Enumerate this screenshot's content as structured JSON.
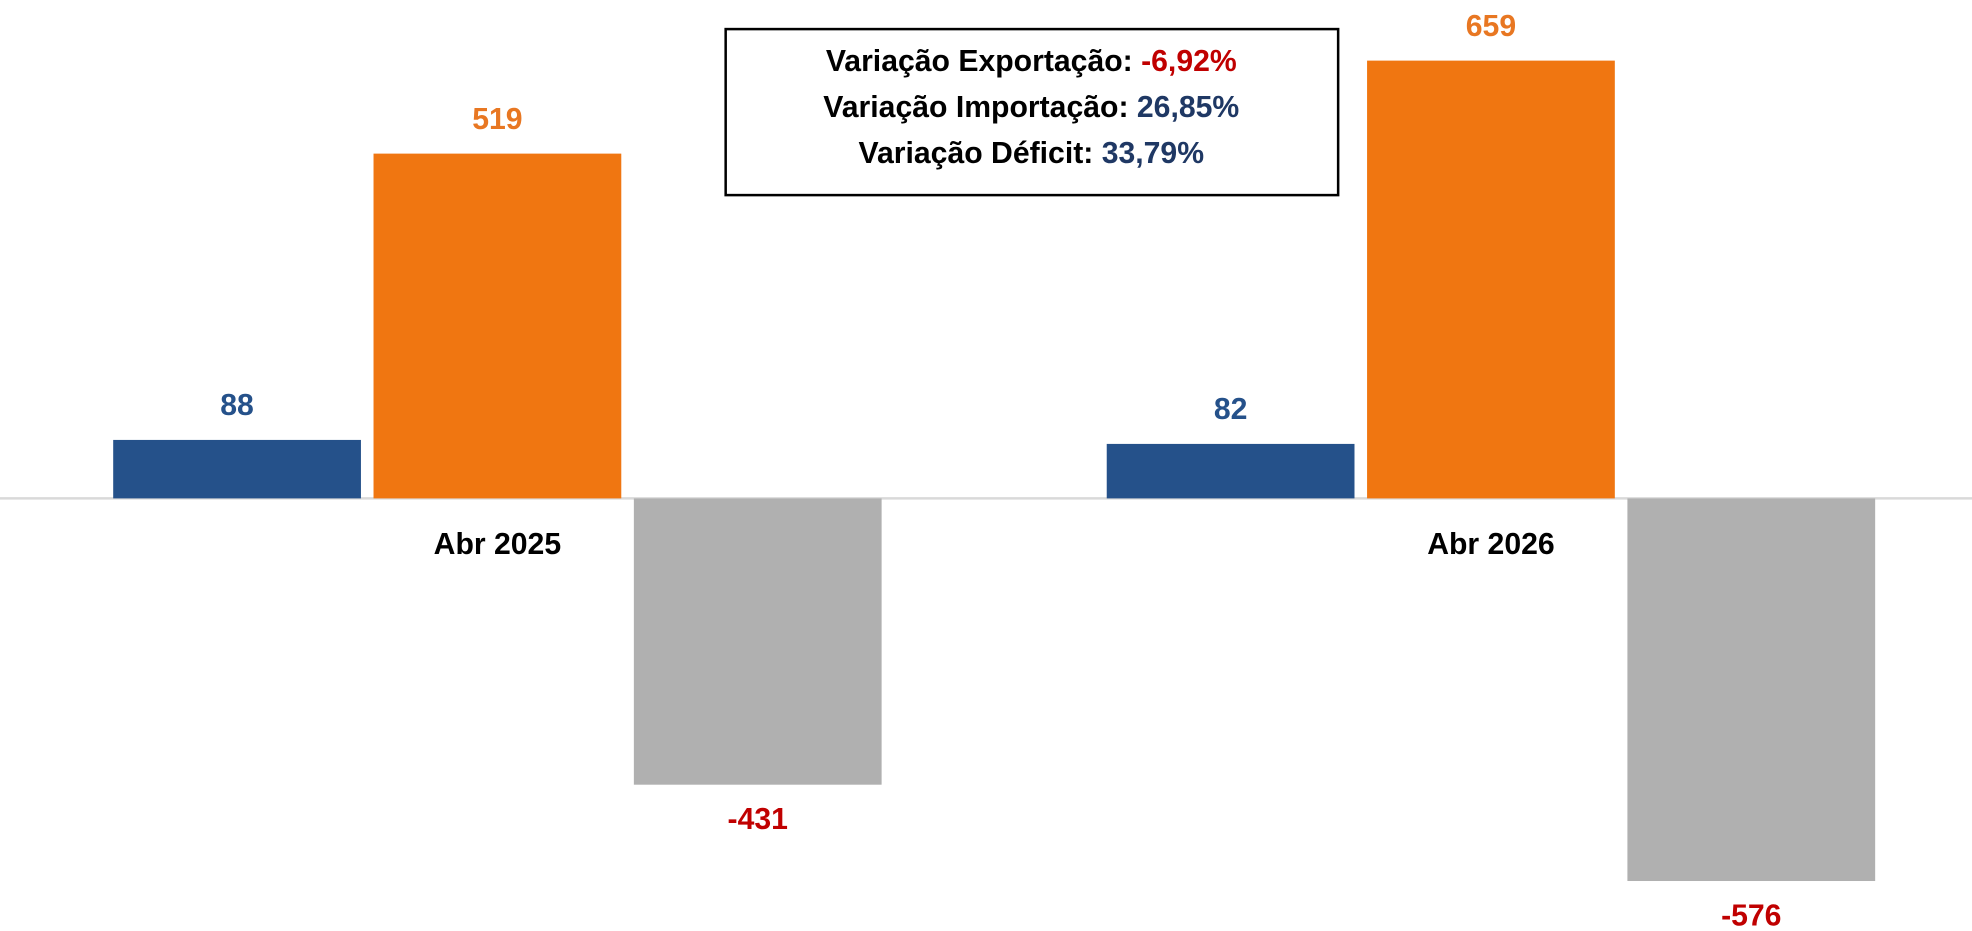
{
  "chart_data": {
    "type": "bar",
    "categories": [
      "Abr 2025",
      "Abr 2026"
    ],
    "series": [
      {
        "color": "#25518a",
        "label_color": "#25518a",
        "values": [
          88,
          82
        ]
      },
      {
        "color": "#f07611",
        "label_color": "#e87722",
        "values": [
          519,
          659
        ]
      },
      {
        "color": "#b0b0b0",
        "label_color": "#c00000",
        "values": [
          -431,
          -576
        ]
      }
    ],
    "ylim": [
      -651,
      750
    ],
    "grid": false,
    "annotations": [
      {
        "label": "Variação Exportação:",
        "value": "-6,92%",
        "color": "#c00000"
      },
      {
        "label": "Variação Importação:",
        "value": "26,85%",
        "color": "#1f3864"
      },
      {
        "label": "Variação Déficit:",
        "value": "33,79%",
        "color": "#1f3864"
      }
    ]
  }
}
